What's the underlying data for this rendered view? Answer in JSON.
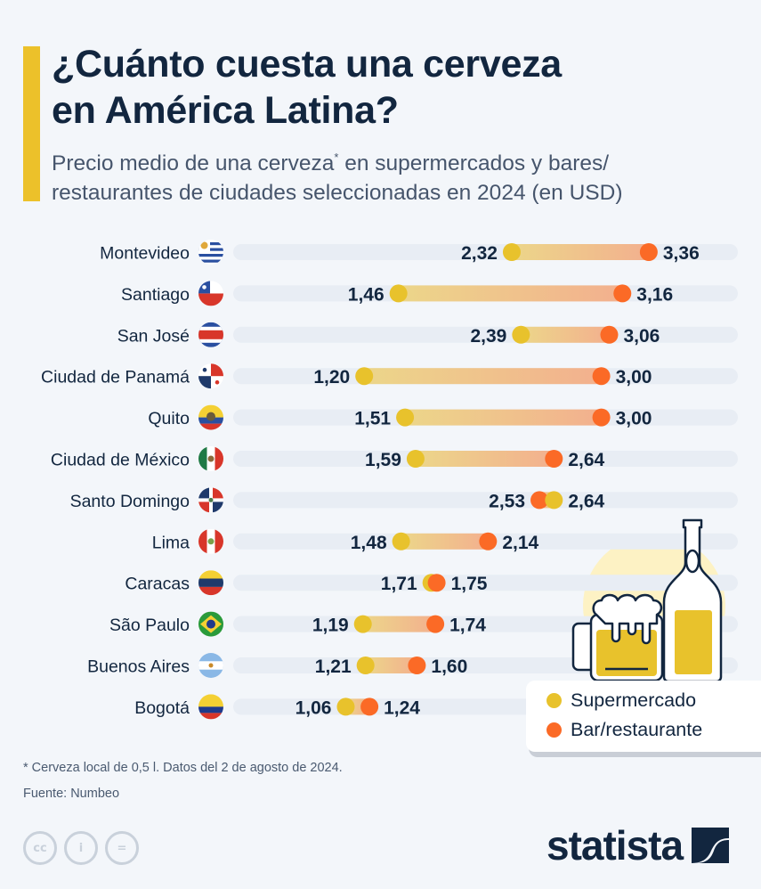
{
  "header": {
    "title_line1": "¿Cuánto cuesta una cerveza",
    "title_line2": "en América Latina?",
    "subtitle_part1": "Precio medio de una cerveza",
    "subtitle_sup": "*",
    "subtitle_part2": " en supermercados y bares/",
    "subtitle_line2": "restaurantes de ciudades seleccionadas en 2024 (en USD)"
  },
  "colors": {
    "accent": "#ecc12a",
    "supermarket": "#e8c22c",
    "bar": "#fb6a26",
    "gradient_start": "#ecd68a",
    "gradient_end": "#f3b08e",
    "track": "#e8edf4",
    "text": "#12263f"
  },
  "chart_data": {
    "type": "dumbbell",
    "title": "¿Cuánto cuesta una cerveza en América Latina?",
    "subtitle": "Precio medio de una cerveza* en supermercados y bares/restaurantes de ciudades seleccionadas en 2024 (en USD)",
    "unit": "USD",
    "decimal_separator": ",",
    "xlim": [
      0,
      4.03
    ],
    "grid": false,
    "legend_position": "bottom-right",
    "series": [
      {
        "name": "Supermercado",
        "color": "#e8c22c",
        "values": [
          2.32,
          1.46,
          2.39,
          1.2,
          1.51,
          1.59,
          2.64,
          1.48,
          1.71,
          1.19,
          1.21,
          1.06
        ]
      },
      {
        "name": "Bar/restaurante",
        "color": "#fb6a26",
        "values": [
          3.36,
          3.16,
          3.06,
          3.0,
          3.0,
          2.64,
          2.53,
          2.14,
          1.75,
          1.74,
          1.6,
          1.24
        ]
      }
    ],
    "categories": [
      "Montevideo",
      "Santiago",
      "San José",
      "Ciudad de Panamá",
      "Quito",
      "Ciudad de México",
      "Santo Domingo",
      "Lima",
      "Caracas",
      "São Paulo",
      "Buenos Aires",
      "Bogotá"
    ],
    "flags": [
      "uruguay-flag-icon",
      "chile-flag-icon",
      "costa-rica-flag-icon",
      "panama-flag-icon",
      "ecuador-flag-icon",
      "mexico-flag-icon",
      "dominican-republic-flag-icon",
      "peru-flag-icon",
      "venezuela-flag-icon",
      "brazil-flag-icon",
      "argentina-flag-icon",
      "colombia-flag-icon"
    ],
    "labels": {
      "supermarket": [
        "2,32",
        "1,46",
        "2,39",
        "1,20",
        "1,51",
        "1,59",
        "2,64",
        "1,48",
        "1,71",
        "1,19",
        "1,21",
        "1,06"
      ],
      "bar": [
        "3,36",
        "3,16",
        "3,06",
        "3,00",
        "3,00",
        "2,64",
        "2,53",
        "2,14",
        "1,75",
        "1,74",
        "1,60",
        "1,24"
      ]
    }
  },
  "legend": {
    "items": [
      {
        "label": "Supermercado",
        "color": "#e8c22c"
      },
      {
        "label": "Bar/restaurante",
        "color": "#fb6a26"
      }
    ]
  },
  "footer": {
    "footnote": "* Cerveza local de 0,5 l. Datos del 2 de agosto de 2024.",
    "source": "Fuente: Numbeo",
    "cc_icons": [
      "cc",
      "i",
      "="
    ],
    "brand": "statista"
  }
}
